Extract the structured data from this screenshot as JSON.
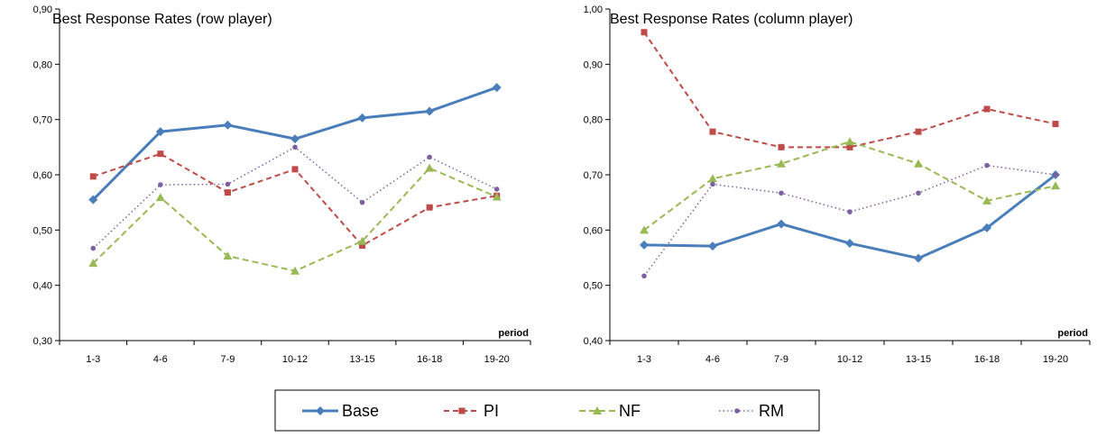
{
  "colors": {
    "Base": "#4a7ebb",
    "PI": "#be4b48",
    "NF": "#98b954",
    "RM": "#7d60a0"
  },
  "chart_data": [
    {
      "type": "line",
      "title": "Best Response Rates (row player)",
      "xlabel": "period",
      "ylabel": "",
      "categories": [
        "1-3",
        "4-6",
        "7-9",
        "10-12",
        "13-15",
        "16-18",
        "19-20"
      ],
      "ylim": [
        0.3,
        0.9
      ],
      "yticks": [
        "0,30",
        "0,40",
        "0,50",
        "0,60",
        "0,70",
        "0,80",
        "0,90"
      ],
      "grid": false,
      "legend": "bottom",
      "series": [
        {
          "name": "Base",
          "values": [
            0.555,
            0.678,
            0.69,
            0.665,
            0.703,
            0.715,
            0.758
          ]
        },
        {
          "name": "PI",
          "values": [
            0.597,
            0.638,
            0.568,
            0.61,
            0.472,
            0.541,
            0.562
          ]
        },
        {
          "name": "NF",
          "values": [
            0.44,
            0.559,
            0.453,
            0.426,
            0.48,
            0.612,
            0.56
          ]
        },
        {
          "name": "RM",
          "values": [
            0.467,
            0.582,
            0.583,
            0.65,
            0.55,
            0.632,
            0.574
          ]
        }
      ]
    },
    {
      "type": "line",
      "title": "Best Response Rates (column player)",
      "xlabel": "period",
      "ylabel": "",
      "categories": [
        "1-3",
        "4-6",
        "7-9",
        "10-12",
        "13-15",
        "16-18",
        "19-20"
      ],
      "ylim": [
        0.4,
        1.0
      ],
      "yticks": [
        "0,40",
        "0,50",
        "0,60",
        "0,70",
        "0,80",
        "0,90",
        "1,00"
      ],
      "grid": false,
      "legend": "bottom",
      "series": [
        {
          "name": "Base",
          "values": [
            0.573,
            0.571,
            0.611,
            0.576,
            0.549,
            0.604,
            0.7
          ]
        },
        {
          "name": "PI",
          "values": [
            0.958,
            0.778,
            0.75,
            0.75,
            0.778,
            0.819,
            0.792
          ]
        },
        {
          "name": "NF",
          "values": [
            0.6,
            0.693,
            0.72,
            0.76,
            0.72,
            0.653,
            0.68
          ]
        },
        {
          "name": "RM",
          "values": [
            0.517,
            0.683,
            0.667,
            0.633,
            0.667,
            0.717,
            0.7
          ]
        }
      ]
    }
  ],
  "legend": {
    "items": [
      "Base",
      "PI",
      "NF",
      "RM"
    ]
  }
}
